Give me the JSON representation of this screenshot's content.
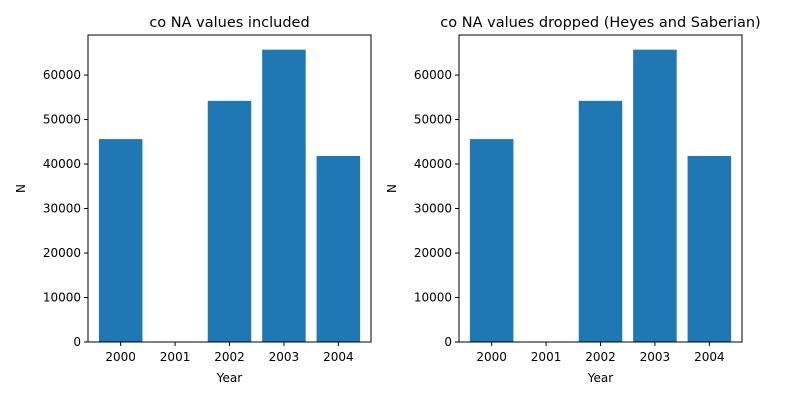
{
  "chart_data": [
    {
      "type": "bar",
      "title": "co NA values included",
      "xlabel": "Year",
      "ylabel": "N",
      "categories": [
        "2000",
        "2001",
        "2002",
        "2003",
        "2004"
      ],
      "values": [
        45600,
        0,
        54200,
        65700,
        41800
      ],
      "ylim": [
        0,
        69000
      ],
      "yticks": [
        0,
        10000,
        20000,
        30000,
        40000,
        50000,
        60000
      ],
      "bar_color": "#1f77b4",
      "grid": false
    },
    {
      "type": "bar",
      "title": "co NA values dropped (Heyes and Saberian)",
      "xlabel": "Year",
      "ylabel": "N",
      "categories": [
        "2000",
        "2001",
        "2002",
        "2003",
        "2004"
      ],
      "values": [
        45600,
        0,
        54200,
        65700,
        41800
      ],
      "ylim": [
        0,
        69000
      ],
      "yticks": [
        0,
        10000,
        20000,
        30000,
        40000,
        50000,
        60000
      ],
      "bar_color": "#1f77b4",
      "grid": false
    }
  ]
}
